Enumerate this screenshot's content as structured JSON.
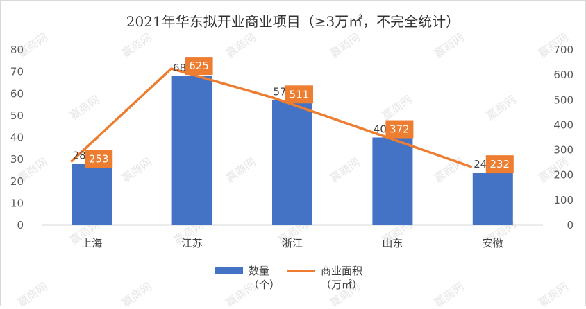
{
  "chart_data": {
    "type": "bar",
    "title": "2021年华东拟开业商业项目（≥3万㎡，不完全统计）",
    "categories": [
      "上海",
      "江苏",
      "浙江",
      "山东",
      "安徽"
    ],
    "series": [
      {
        "name": "数量（个）",
        "name_lines": [
          "数量",
          "（个）"
        ],
        "type": "bar",
        "axis": "left",
        "color": "#4472C4",
        "values": [
          28,
          68,
          57,
          40,
          24
        ]
      },
      {
        "name": "商业面积（万㎡）",
        "name_lines": [
          "商业面积",
          "（万㎡）"
        ],
        "type": "line",
        "axis": "right",
        "color": "#ED7D31",
        "values": [
          253,
          625,
          511,
          372,
          232
        ]
      }
    ],
    "y_left": {
      "min": 0,
      "max": 80,
      "step": 10,
      "ticks": [
        "0",
        "10",
        "20",
        "30",
        "40",
        "50",
        "60",
        "70",
        "80"
      ]
    },
    "y_right": {
      "min": 0,
      "max": 700,
      "step": 100,
      "ticks": [
        "0",
        "100",
        "200",
        "300",
        "400",
        "500",
        "600",
        "700"
      ]
    },
    "grid": false,
    "legend": "bottom",
    "watermark": "赢商网"
  }
}
